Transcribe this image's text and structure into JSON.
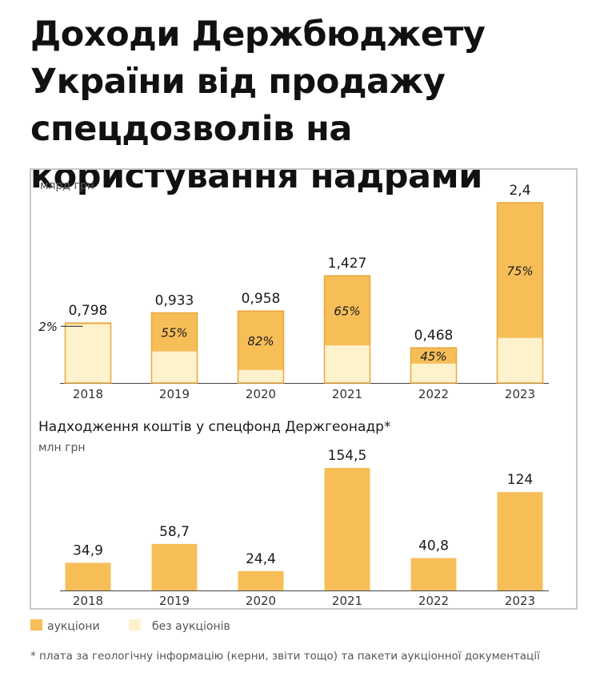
{
  "title": "Доходи Держбюджету України від продажу спецдозволів на користування надрами",
  "colors": {
    "auction": "#F7BE58",
    "no_auction": "#FEF2CC",
    "border": "#E9A73E",
    "frame": "#c8c8c8"
  },
  "legend": {
    "auction": "аукціони",
    "no_auction": "без аукціонів"
  },
  "footnote": "* плата за геологічну інформацію (керни, звіти тощо) та пакети аукціонної документації",
  "chart_data": [
    {
      "type": "bar",
      "unit": "млрд грн",
      "categories": [
        "2018",
        "2019",
        "2020",
        "2021",
        "2022",
        "2023"
      ],
      "totals": [
        0.798,
        0.933,
        0.958,
        1.427,
        0.468,
        2.4
      ],
      "total_labels": [
        "0,798",
        "0,933",
        "0,958",
        "1,427",
        "0,468",
        "2,4"
      ],
      "auction_share": [
        0.02,
        0.55,
        0.82,
        0.65,
        0.45,
        0.75
      ],
      "share_labels": [
        "2%",
        "55%",
        "82%",
        "65%",
        "45%",
        "75%"
      ],
      "series": [
        {
          "name": "аукціони",
          "values": [
            0.016,
            0.513,
            0.786,
            0.928,
            0.211,
            1.8
          ]
        },
        {
          "name": "без аукціонів",
          "values": [
            0.782,
            0.42,
            0.172,
            0.499,
            0.257,
            0.6
          ]
        }
      ],
      "ylim": [
        0,
        2.4
      ]
    },
    {
      "type": "bar",
      "title": "Надходження коштів у спецфонд Держгеонадр*",
      "unit": "млн грн",
      "categories": [
        "2018",
        "2019",
        "2020",
        "2021",
        "2022",
        "2023"
      ],
      "values": [
        34.9,
        58.7,
        24.4,
        154.5,
        40.8,
        124
      ],
      "value_labels": [
        "34,9",
        "58,7",
        "24,4",
        "154,5",
        "40,8",
        "124"
      ],
      "ylim": [
        0,
        154.5
      ]
    }
  ]
}
